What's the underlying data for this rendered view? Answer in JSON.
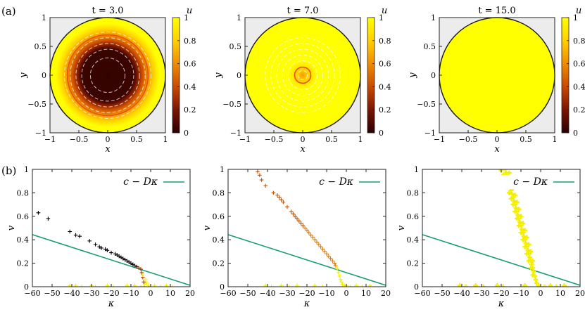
{
  "panel_labels": [
    "(a)",
    "(b)"
  ],
  "colors": {
    "frame": "#222222",
    "disk_edge": "#1a1a1a",
    "outside_disk": "#ececec",
    "line": "#1a9e74",
    "contour": "#ffffff",
    "colormap": [
      "#2b0000",
      "#7a1500",
      "#c94a00",
      "#f08c00",
      "#ffd000",
      "#ffff00"
    ]
  },
  "chart_data": [
    {
      "type": "heatmap",
      "panel": "a1",
      "title": "t = 3.0",
      "xlabel": "x",
      "ylabel": "y",
      "xlim": [
        -1,
        1
      ],
      "ylim": [
        -1,
        1
      ],
      "xticks": [
        "-1",
        "-0.5",
        "0",
        "0.5",
        "1"
      ],
      "yticks": [
        "-1",
        "-0.5",
        "0",
        "0.5",
        "1"
      ],
      "colorbar": {
        "label": "u",
        "range": [
          0,
          1
        ],
        "ticks": [
          "0",
          "0.2",
          "0.4",
          "0.6",
          "0.8",
          "1"
        ]
      },
      "domain_radius": 1.0,
      "field": {
        "kind": "radial_front",
        "front_radius": 0.68,
        "width": 0.22,
        "center_value": 0.02
      },
      "contour_radii": [
        0.3,
        0.45,
        0.55,
        0.65,
        0.75
      ],
      "front_circle_radius": 0.7
    },
    {
      "type": "heatmap",
      "panel": "a2",
      "title": "t = 7.0",
      "xlabel": "x",
      "ylabel": "y",
      "xlim": [
        -1,
        1
      ],
      "ylim": [
        -1,
        1
      ],
      "xticks": [
        "-1",
        "-0.5",
        "0",
        "0.5",
        "1"
      ],
      "yticks": [
        "-1",
        "-0.5",
        "0",
        "0.5",
        "1"
      ],
      "colorbar": {
        "label": "u",
        "range": [
          0,
          1
        ],
        "ticks": [
          "0",
          "0.2",
          "0.4",
          "0.6",
          "0.8",
          "1"
        ]
      },
      "domain_radius": 1.0,
      "field": {
        "kind": "radial_front",
        "front_radius": 0.13,
        "width": 0.12,
        "center_value": 0.65
      },
      "contour_radii": [
        0.08,
        0.25,
        0.35,
        0.45,
        0.55,
        0.65
      ],
      "front_circle_radius": 0.14
    },
    {
      "type": "heatmap",
      "panel": "a3",
      "title": "t = 15.0",
      "xlabel": "x",
      "ylabel": "y",
      "xlim": [
        -1,
        1
      ],
      "ylim": [
        -1,
        1
      ],
      "xticks": [
        "-1",
        "-0.5",
        "0",
        "0.5",
        "1"
      ],
      "yticks": [
        "-1",
        "-0.5",
        "0",
        "0.5",
        "1"
      ],
      "colorbar": {
        "label": "u",
        "range": [
          0,
          1
        ],
        "ticks": [
          "0",
          "0.2",
          "0.4",
          "0.6",
          "0.8",
          "1"
        ]
      },
      "domain_radius": 1.0,
      "field": {
        "kind": "uniform",
        "value": 1.0
      },
      "contour_radii": [],
      "front_circle_radius": null
    },
    {
      "type": "scatter",
      "panel": "b1",
      "xlabel": "κ",
      "ylabel": "v",
      "xlim": [
        -60,
        20
      ],
      "ylim": [
        0,
        1
      ],
      "xticks": [
        -60,
        -50,
        -40,
        -30,
        -20,
        -10,
        0,
        10,
        20
      ],
      "yticks": [
        0,
        0.2,
        0.4,
        0.6,
        0.8,
        1
      ],
      "legend": {
        "label": "c − Dκ",
        "placement": "top-right"
      },
      "line": {
        "intercept": 0.12,
        "slope_D": 0.0054
      },
      "series": [
        {
          "kind": "dark_points",
          "points": [
            [
              -57,
              0.63
            ],
            [
              -52,
              0.58
            ],
            [
              -41,
              0.47
            ],
            [
              -38,
              0.44
            ],
            [
              -36,
              0.43
            ],
            [
              -31,
              0.39
            ],
            [
              -28,
              0.36
            ],
            [
              -26,
              0.34
            ],
            [
              -25,
              0.33
            ],
            [
              -23,
              0.32
            ],
            [
              -22,
              0.31
            ],
            [
              -20,
              0.29
            ],
            [
              -18,
              0.28
            ],
            [
              -17,
              0.27
            ],
            [
              -16,
              0.26
            ],
            [
              -15,
              0.25
            ],
            [
              -14,
              0.24
            ],
            [
              -13,
              0.23
            ],
            [
              -12,
              0.22
            ],
            [
              -11,
              0.21
            ],
            [
              -10,
              0.2
            ],
            [
              -9,
              0.19
            ],
            [
              -8,
              0.18
            ],
            [
              -7,
              0.17
            ],
            [
              -6,
              0.16
            ],
            [
              -5,
              0.15
            ],
            [
              -4.5,
              0.12
            ],
            [
              -4,
              0.08
            ],
            [
              -3.5,
              0.04
            ]
          ]
        },
        {
          "kind": "bright_points",
          "points": [
            [
              -3.5,
              0.0
            ],
            [
              -3,
              0.02
            ],
            [
              -2.5,
              0.06
            ],
            [
              -2,
              0.03
            ],
            [
              -4,
              0.1
            ],
            [
              -1,
              0.01
            ],
            [
              -41,
              0.01
            ],
            [
              -38,
              0.01
            ],
            [
              -35,
              0.0
            ],
            [
              -30,
              0.01
            ],
            [
              -28,
              0.0
            ],
            [
              -22,
              0.01
            ],
            [
              -19,
              0.0
            ],
            [
              -12,
              0.01
            ],
            [
              -8,
              0.01
            ],
            [
              -5,
              0.0
            ],
            [
              2,
              0.01
            ],
            [
              5,
              0.0
            ],
            [
              8,
              0.01
            ],
            [
              11,
              0.0
            ]
          ]
        }
      ]
    },
    {
      "type": "scatter",
      "panel": "b2",
      "xlabel": "κ",
      "ylabel": "v",
      "xlim": [
        -60,
        20
      ],
      "ylim": [
        0,
        1
      ],
      "xticks": [
        -60,
        -50,
        -40,
        -30,
        -20,
        -10,
        0,
        10,
        20
      ],
      "yticks": [
        0,
        0.2,
        0.4,
        0.6,
        0.8,
        1
      ],
      "legend": {
        "label": "c − Dκ",
        "placement": "top-right"
      },
      "line": {
        "intercept": 0.12,
        "slope_D": 0.0054
      },
      "series": [
        {
          "kind": "orange_points",
          "points": [
            [
              -45,
              0.98
            ],
            [
              -44,
              0.95
            ],
            [
              -43,
              0.91
            ],
            [
              -41,
              0.86
            ],
            [
              -37,
              0.8
            ],
            [
              -35,
              0.78
            ],
            [
              -34,
              0.76
            ],
            [
              -33,
              0.74
            ],
            [
              -32,
              0.72
            ],
            [
              -30,
              0.68
            ],
            [
              -28,
              0.64
            ],
            [
              -27,
              0.62
            ],
            [
              -26,
              0.6
            ],
            [
              -25,
              0.58
            ],
            [
              -24,
              0.56
            ],
            [
              -23,
              0.54
            ],
            [
              -22,
              0.52
            ],
            [
              -21,
              0.5
            ],
            [
              -20,
              0.48
            ],
            [
              -19,
              0.46
            ],
            [
              -18,
              0.44
            ],
            [
              -17,
              0.42
            ],
            [
              -16,
              0.4
            ],
            [
              -15,
              0.38
            ],
            [
              -14,
              0.36
            ],
            [
              -13,
              0.34
            ],
            [
              -12,
              0.32
            ],
            [
              -11,
              0.3
            ],
            [
              -10,
              0.28
            ],
            [
              -9,
              0.26
            ],
            [
              -8,
              0.24
            ],
            [
              -7,
              0.22
            ],
            [
              -6,
              0.2
            ],
            [
              -5.5,
              0.18
            ]
          ]
        },
        {
          "kind": "bright_points",
          "points": [
            [
              -5,
              0.17
            ],
            [
              -4.5,
              0.15
            ],
            [
              -4,
              0.12
            ],
            [
              -3.5,
              0.09
            ],
            [
              -3,
              0.06
            ],
            [
              -2.5,
              0.04
            ],
            [
              -2,
              0.02
            ],
            [
              -1,
              0.01
            ],
            [
              0,
              0.01
            ],
            [
              -41,
              0.01
            ],
            [
              -38,
              0.0
            ],
            [
              -33,
              0.01
            ],
            [
              -29,
              0.0
            ],
            [
              -25,
              0.01
            ],
            [
              -20,
              0.0
            ],
            [
              -16,
              0.01
            ],
            [
              -12,
              0.0
            ],
            [
              2,
              0.0
            ],
            [
              5,
              0.01
            ],
            [
              8,
              0.0
            ],
            [
              12,
              0.01
            ]
          ]
        }
      ]
    },
    {
      "type": "scatter",
      "panel": "b3",
      "xlabel": "κ",
      "ylabel": "v",
      "xlim": [
        -60,
        20
      ],
      "ylim": [
        0,
        1
      ],
      "xticks": [
        -60,
        -50,
        -40,
        -30,
        -20,
        -10,
        0,
        10,
        20
      ],
      "yticks": [
        0,
        0.2,
        0.4,
        0.6,
        0.8,
        1
      ],
      "legend": {
        "label": "c − Dκ",
        "placement": "top-right"
      },
      "line": {
        "intercept": 0.12,
        "slope_D": 0.0054
      },
      "series": [
        {
          "kind": "bright_band",
          "points": [
            [
              -18,
              1.0
            ],
            [
              -17.5,
              0.97
            ],
            [
              -17,
              0.94
            ],
            [
              -16.5,
              0.91
            ],
            [
              -16,
              0.88
            ],
            [
              -15.5,
              0.85
            ],
            [
              -15,
              0.82
            ],
            [
              -14.5,
              0.79
            ],
            [
              -14,
              0.76
            ],
            [
              -13.5,
              0.73
            ],
            [
              -13,
              0.7
            ],
            [
              -12.5,
              0.67
            ],
            [
              -12,
              0.64
            ],
            [
              -11.5,
              0.61
            ],
            [
              -11,
              0.58
            ],
            [
              -10.5,
              0.55
            ],
            [
              -10,
              0.52
            ],
            [
              -9.5,
              0.49
            ],
            [
              -9,
              0.46
            ],
            [
              -8.5,
              0.43
            ],
            [
              -8,
              0.4
            ],
            [
              -7.5,
              0.37
            ],
            [
              -7,
              0.34
            ],
            [
              -6.5,
              0.31
            ],
            [
              -6,
              0.28
            ],
            [
              -5.5,
              0.25
            ],
            [
              -5,
              0.22
            ],
            [
              -4.5,
              0.19
            ],
            [
              -4,
              0.16
            ],
            [
              -3.5,
              0.13
            ],
            [
              -3,
              0.09
            ],
            [
              -2.5,
              0.06
            ],
            [
              -2,
              0.03
            ],
            [
              -1,
              0.01
            ],
            [
              -16,
              0.97
            ],
            [
              -15,
              0.9
            ],
            [
              -14,
              0.84
            ],
            [
              -13,
              0.78
            ],
            [
              -12,
              0.72
            ],
            [
              -11,
              0.66
            ],
            [
              -10,
              0.6
            ],
            [
              -9,
              0.54
            ],
            [
              -8,
              0.48
            ],
            [
              -7,
              0.42
            ],
            [
              -6,
              0.36
            ],
            [
              -5,
              0.3
            ],
            [
              -4,
              0.22
            ],
            [
              -20,
              0.99
            ],
            [
              -19,
              0.95
            ],
            [
              -18,
              0.9
            ],
            [
              -17,
              0.85
            ],
            [
              -16,
              0.8
            ],
            [
              -15,
              0.75
            ],
            [
              -14,
              0.7
            ],
            [
              -13,
              0.64
            ],
            [
              -12,
              0.58
            ],
            [
              -11,
              0.52
            ],
            [
              -10,
              0.46
            ],
            [
              -9,
              0.4
            ],
            [
              -8,
              0.34
            ],
            [
              -7,
              0.28
            ],
            [
              -6,
              0.22
            ],
            [
              -5,
              0.16
            ],
            [
              -4,
              0.1
            ],
            [
              -41,
              0.01
            ],
            [
              -38,
              0.0
            ],
            [
              -33,
              0.01
            ],
            [
              -29,
              0.0
            ],
            [
              -22,
              0.01
            ],
            [
              -19,
              0.0
            ],
            [
              -8,
              0.01
            ],
            [
              2,
              0.0
            ],
            [
              5,
              0.01
            ],
            [
              8,
              0.0
            ],
            [
              12,
              0.01
            ]
          ]
        }
      ]
    }
  ]
}
